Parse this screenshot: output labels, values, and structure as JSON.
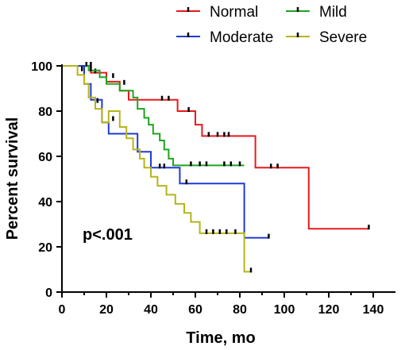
{
  "chart_data": {
    "type": "line",
    "step": true,
    "title": "",
    "xlabel": "Time, mo",
    "ylabel": "Percent survival",
    "xlim": [
      0,
      150
    ],
    "ylim": [
      0,
      100
    ],
    "xticks": [
      0,
      20,
      40,
      60,
      80,
      100,
      120,
      140
    ],
    "yticks": [
      0,
      20,
      40,
      60,
      80,
      100
    ],
    "annotation": "p<.001",
    "legend": {
      "placement": "top",
      "columns": 2
    },
    "series": [
      {
        "name": "Normal",
        "color": "#e8191c",
        "points": [
          [
            0,
            100
          ],
          [
            13,
            100
          ],
          [
            13,
            97
          ],
          [
            20,
            97
          ],
          [
            20,
            93
          ],
          [
            26,
            93
          ],
          [
            26,
            89
          ],
          [
            30,
            89
          ],
          [
            30,
            85
          ],
          [
            52,
            85
          ],
          [
            52,
            80
          ],
          [
            60,
            80
          ],
          [
            60,
            74
          ],
          [
            63,
            74
          ],
          [
            63,
            69
          ],
          [
            87,
            69
          ],
          [
            87,
            55
          ],
          [
            111,
            55
          ],
          [
            111,
            28
          ],
          [
            138,
            28
          ]
        ],
        "censored": [
          [
            15,
            97
          ],
          [
            45,
            85
          ],
          [
            48,
            85
          ],
          [
            57,
            80
          ],
          [
            66,
            69
          ],
          [
            70,
            69
          ],
          [
            73,
            69
          ],
          [
            75,
            69
          ],
          [
            94,
            55
          ],
          [
            97,
            55
          ],
          [
            138,
            28
          ]
        ]
      },
      {
        "name": "Mild",
        "color": "#1fa51f",
        "points": [
          [
            0,
            100
          ],
          [
            12,
            100
          ],
          [
            12,
            98
          ],
          [
            17,
            98
          ],
          [
            17,
            95
          ],
          [
            20,
            95
          ],
          [
            20,
            92
          ],
          [
            26,
            92
          ],
          [
            26,
            89
          ],
          [
            32,
            89
          ],
          [
            32,
            86
          ],
          [
            34,
            86
          ],
          [
            34,
            81
          ],
          [
            37,
            81
          ],
          [
            37,
            77
          ],
          [
            39,
            77
          ],
          [
            39,
            74
          ],
          [
            41,
            74
          ],
          [
            41,
            70
          ],
          [
            44,
            70
          ],
          [
            44,
            67
          ],
          [
            46,
            67
          ],
          [
            46,
            63
          ],
          [
            48,
            63
          ],
          [
            48,
            59
          ],
          [
            50,
            59
          ],
          [
            50,
            56
          ],
          [
            82,
            56
          ]
        ],
        "censored": [
          [
            13,
            98
          ],
          [
            23,
            95
          ],
          [
            28,
            92
          ],
          [
            58,
            56
          ],
          [
            62,
            56
          ],
          [
            65,
            56
          ],
          [
            73,
            56
          ],
          [
            76,
            56
          ],
          [
            80,
            56
          ]
        ]
      },
      {
        "name": "Moderate",
        "color": "#1f3ad6",
        "points": [
          [
            0,
            100
          ],
          [
            10,
            100
          ],
          [
            10,
            92
          ],
          [
            13,
            92
          ],
          [
            13,
            85
          ],
          [
            18,
            85
          ],
          [
            18,
            75
          ],
          [
            21,
            75
          ],
          [
            21,
            70
          ],
          [
            34,
            70
          ],
          [
            34,
            62
          ],
          [
            40,
            62
          ],
          [
            40,
            55
          ],
          [
            53,
            55
          ],
          [
            53,
            48
          ],
          [
            82,
            48
          ],
          [
            82,
            24
          ],
          [
            93,
            24
          ]
        ],
        "censored": [
          [
            11,
            100
          ],
          [
            13,
            100
          ],
          [
            44,
            55
          ],
          [
            46,
            55
          ],
          [
            56,
            48
          ],
          [
            93,
            24
          ]
        ]
      },
      {
        "name": "Severe",
        "color": "#b5b51b",
        "points": [
          [
            0,
            100
          ],
          [
            7,
            100
          ],
          [
            7,
            96
          ],
          [
            10,
            96
          ],
          [
            10,
            92
          ],
          [
            12,
            92
          ],
          [
            12,
            86
          ],
          [
            15,
            86
          ],
          [
            15,
            81
          ],
          [
            18,
            81
          ],
          [
            18,
            75
          ],
          [
            21,
            75
          ],
          [
            21,
            80
          ],
          [
            26,
            80
          ],
          [
            26,
            73
          ],
          [
            29,
            73
          ],
          [
            29,
            68
          ],
          [
            32,
            68
          ],
          [
            32,
            63
          ],
          [
            35,
            63
          ],
          [
            35,
            59
          ],
          [
            37,
            59
          ],
          [
            37,
            55
          ],
          [
            40,
            55
          ],
          [
            40,
            51
          ],
          [
            43,
            51
          ],
          [
            43,
            47
          ],
          [
            47,
            47
          ],
          [
            47,
            43
          ],
          [
            51,
            43
          ],
          [
            51,
            39
          ],
          [
            55,
            39
          ],
          [
            55,
            35
          ],
          [
            58,
            35
          ],
          [
            58,
            31
          ],
          [
            62,
            31
          ],
          [
            62,
            26
          ],
          [
            82,
            26
          ],
          [
            82,
            9
          ],
          [
            85,
            9
          ]
        ],
        "censored": [
          [
            9,
            98
          ],
          [
            16,
            84
          ],
          [
            23,
            76
          ],
          [
            65,
            26
          ],
          [
            68,
            26
          ],
          [
            71,
            26
          ],
          [
            74,
            26
          ],
          [
            78,
            26
          ],
          [
            85,
            9
          ]
        ]
      }
    ]
  }
}
